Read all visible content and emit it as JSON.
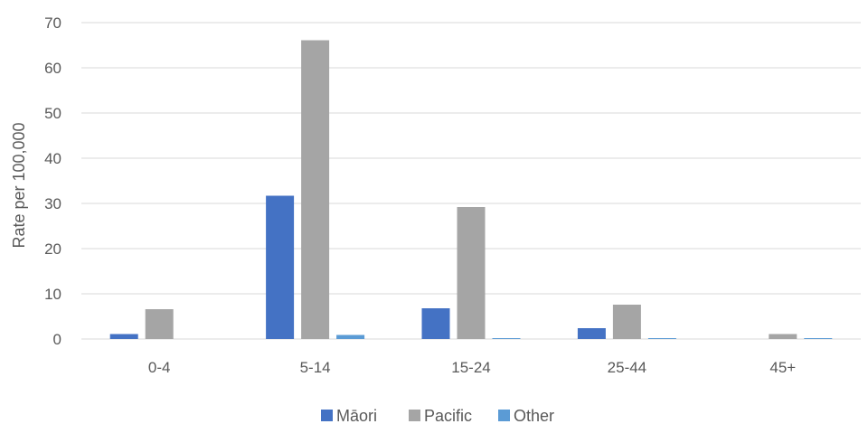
{
  "chart_data": {
    "type": "bar",
    "title": "",
    "xlabel": "",
    "ylabel": "Rate per 100,000",
    "ylim": [
      0,
      70
    ],
    "yticks": [
      0,
      10,
      20,
      30,
      40,
      50,
      60,
      70
    ],
    "categories": [
      "0-4",
      "5-14",
      "15-24",
      "25-44",
      "45+"
    ],
    "series": [
      {
        "name": "Māori",
        "color": "#4472c4",
        "values": [
          1.1,
          31.7,
          6.8,
          2.4,
          0
        ]
      },
      {
        "name": "Pacific",
        "color": "#a5a5a5",
        "values": [
          6.6,
          66.1,
          29.2,
          7.6,
          1.1
        ]
      },
      {
        "name": "Other",
        "color": "#5b9bd5",
        "values": [
          0,
          0.9,
          0.2,
          0.2,
          0.2
        ]
      }
    ],
    "grid": true,
    "legend": "bottom-center"
  }
}
